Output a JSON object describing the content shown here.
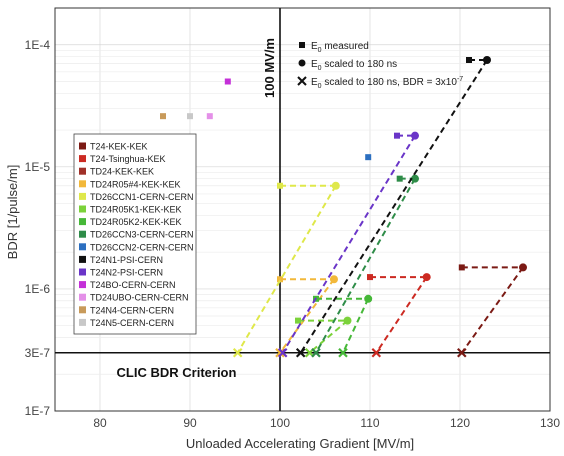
{
  "chart_data": {
    "type": "scatter",
    "xlabel": "Unloaded Accelerating Gradient [MV/m]",
    "ylabel": "BDR [1/pulse/m]",
    "xlim": [
      75,
      130
    ],
    "ylim": [
      1e-07,
      0.0002
    ],
    "yscale": "log",
    "grid": true,
    "xticks": [
      "80",
      "90",
      "100",
      "110",
      "120",
      "130"
    ],
    "yticks": [
      {
        "value": 1e-07,
        "label": "1E-7"
      },
      {
        "value": 3e-07,
        "label": "3E-7"
      },
      {
        "value": 1e-06,
        "label": "1E-6"
      },
      {
        "value": 1e-05,
        "label": "1E-5"
      },
      {
        "value": 0.0001,
        "label": "1E-4"
      }
    ],
    "reference_lines": {
      "vertical": {
        "x": 100,
        "label": "100 MV/m"
      },
      "horizontal": {
        "y": 3e-07,
        "label": "CLIC BDR Criterion"
      }
    },
    "marker_legend": [
      {
        "marker": "square",
        "label": "E",
        "sub": "0",
        "suffix": " measured"
      },
      {
        "marker": "circle",
        "label": "E",
        "sub": "0",
        "suffix": " scaled to 180 ns"
      },
      {
        "marker": "cross",
        "label": "E",
        "sub": "0",
        "suffix": " scaled to 180 ns, BDR = 3x10",
        "sup": "-7"
      }
    ],
    "series": [
      {
        "name": "T24-KEK-KEK",
        "color": "#7b1a14",
        "points": [
          {
            "measured": [
              120.2,
              1.5e-06
            ],
            "scaled": [
              127,
              1.5e-06
            ],
            "cross": [
              120.2,
              3e-07
            ]
          }
        ]
      },
      {
        "name": "T24-Tsinghua-KEK",
        "color": "#cc2a22",
        "points": [
          {
            "measured": [
              110,
              1.25e-06
            ],
            "scaled": [
              116.3,
              1.25e-06
            ],
            "cross": [
              110.7,
              3e-07
            ]
          }
        ]
      },
      {
        "name": "TD24-KEK-KEK",
        "color": "#a03028",
        "points": []
      },
      {
        "name": "TD24R05#4-KEK-KEK",
        "color": "#f2b83a",
        "points": [
          {
            "measured": [
              100,
              1.2e-06
            ],
            "scaled": [
              106,
              1.2e-06
            ],
            "cross": [
              100,
              3e-07
            ]
          }
        ]
      },
      {
        "name": "TD26CCN1-CERN-CERN",
        "color": "#dfe84a",
        "points": [
          {
            "measured": [
              100,
              7e-06
            ],
            "scaled": [
              106.2,
              7e-06
            ],
            "cross": [
              95.3,
              3e-07
            ]
          }
        ]
      },
      {
        "name": "TD24R05K1-KEK-KEK",
        "color": "#7bd23a",
        "points": [
          {
            "measured": [
              102,
              5.5e-07
            ],
            "scaled": [
              107.5,
              5.5e-07
            ],
            "cross": [
              103.3,
              3e-07
            ]
          }
        ]
      },
      {
        "name": "TD24R05K2-KEK-KEK",
        "color": "#46b838",
        "points": [
          {
            "measured": [
              104,
              8.3e-07
            ],
            "scaled": [
              109.8,
              8.3e-07
            ],
            "cross": [
              107,
              3e-07
            ]
          }
        ]
      },
      {
        "name": "TD26CCN3-CERN-CERN",
        "color": "#2e8c48",
        "points": [
          {
            "measured": [
              113.3,
              8e-06
            ],
            "scaled": [
              115,
              8e-06
            ],
            "cross": [
              104,
              3e-07
            ]
          }
        ]
      },
      {
        "name": "TD26CCN2-CERN-CERN",
        "color": "#2c6fc0",
        "points": [
          {
            "measured": [
              109.8,
              1.2e-05
            ],
            "scaled": null,
            "cross": null
          }
        ]
      },
      {
        "name": "T24N1-PSI-CERN",
        "color": "#111111",
        "points": [
          {
            "measured": [
              121,
              7.5e-05
            ],
            "scaled": [
              123,
              7.5e-05
            ],
            "cross": [
              102.3,
              3e-07
            ]
          }
        ]
      },
      {
        "name": "T24N2-PSI-CERN",
        "color": "#6a35c8",
        "points": [
          {
            "measured": [
              113,
              1.8e-05
            ],
            "scaled": [
              115,
              1.8e-05
            ],
            "cross": [
              100.3,
              3e-07
            ]
          }
        ]
      },
      {
        "name": "T24BO-CERN-CERN",
        "color": "#c430d8",
        "points": [
          {
            "measured": [
              94.2,
              5e-05
            ],
            "scaled": null,
            "cross": null
          }
        ]
      },
      {
        "name": "TD24UBO-CERN-CERN",
        "color": "#e490e8",
        "points": [
          {
            "measured": [
              92.2,
              2.6e-05
            ],
            "scaled": null,
            "cross": null
          }
        ]
      },
      {
        "name": "T24N4-CERN-CERN",
        "color": "#c89a5a",
        "points": [
          {
            "measured": [
              87,
              2.6e-05
            ],
            "scaled": null,
            "cross": null
          }
        ]
      },
      {
        "name": "T24N5-CERN-CERN",
        "color": "#c8c8c8",
        "points": [
          {
            "measured": [
              90,
              2.6e-05
            ],
            "scaled": null,
            "cross": null
          }
        ]
      }
    ]
  }
}
